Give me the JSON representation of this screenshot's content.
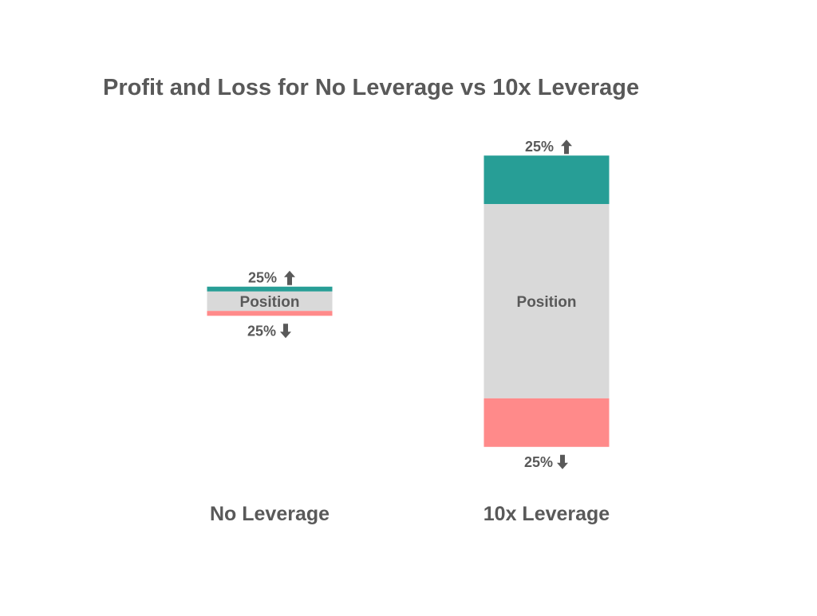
{
  "chart_data": {
    "type": "bar",
    "title": "Profit and Loss for No Leverage vs 10x Leverage",
    "categories": [
      "No Leverage",
      "10x Leverage"
    ],
    "series": [
      {
        "name": "",
        "role": "profit",
        "color": "#279e96",
        "values": [
          25,
          250
        ]
      },
      {
        "name": "",
        "role": "position",
        "color": "#d9d9d9",
        "values": [
          100,
          1000
        ]
      },
      {
        "name": "",
        "role": "loss",
        "color": "#ff8a8a",
        "values": [
          25,
          250
        ]
      }
    ],
    "segment_labels": {
      "position": "Position",
      "profit": "25%",
      "loss": "25%"
    },
    "icons": {
      "profit": "arrow-up-icon",
      "loss": "arrow-down-icon"
    },
    "legend": "none",
    "grid": false,
    "xlabel": "",
    "ylabel": ""
  }
}
